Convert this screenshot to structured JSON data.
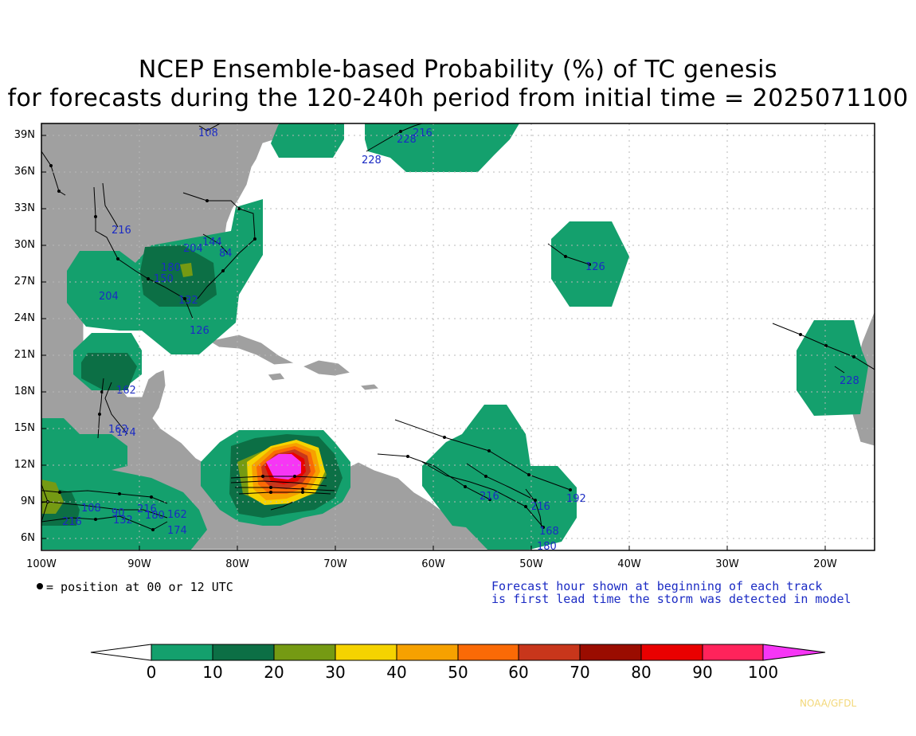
{
  "title_line1": "NCEP Ensemble-based Probability (%) of TC genesis",
  "title_line2": "for forecasts during the 120-240h period from initial time = 2025071100",
  "lat_labels": [
    "39N",
    "36N",
    "33N",
    "30N",
    "27N",
    "24N",
    "21N",
    "18N",
    "15N",
    "12N",
    "9N",
    "6N"
  ],
  "lon_labels": [
    "100W",
    "90W",
    "80W",
    "70W",
    "60W",
    "50W",
    "40W",
    "30W",
    "20W"
  ],
  "legend_position_note": "= position at 00 or 12 UTC",
  "legend_forecast_line1": "Forecast hour shown at beginning of each track",
  "legend_forecast_line2": "is first lead time the storm was detected in model",
  "colorbar": {
    "labels": [
      "0",
      "10",
      "20",
      "30",
      "40",
      "50",
      "60",
      "70",
      "80",
      "90",
      "100"
    ],
    "colors": [
      "#ffffff",
      "#14a06d",
      "#0c6f45",
      "#759a13",
      "#f5d300",
      "#f6a100",
      "#fa6a06",
      "#c8361b",
      "#9a0c00",
      "#e90000",
      "#ff235b",
      "#f636f5"
    ]
  },
  "credit": "NOAA/GFDL",
  "track_hour_labels": [
    "108",
    "216",
    "228",
    "228",
    "216",
    "144",
    "204",
    "84",
    "180",
    "132",
    "150",
    "126",
    "204",
    "126",
    "192",
    "228",
    "216",
    "216",
    "168",
    "180",
    "162",
    "174",
    "162",
    "108",
    "216",
    "90",
    "180",
    "132",
    "162",
    "174",
    "216"
  ]
}
